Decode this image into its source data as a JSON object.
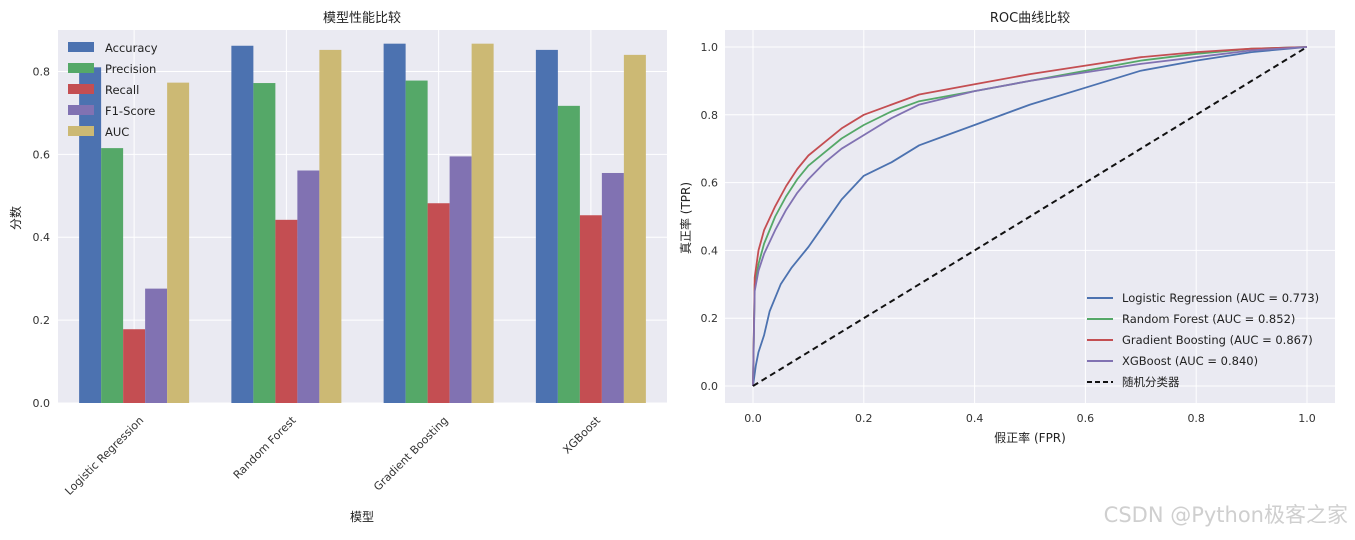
{
  "watermark": "CSDN @Python极客之家",
  "chart_data": [
    {
      "type": "bar",
      "title": "模型性能比较",
      "xlabel": "模型",
      "ylabel": "分数",
      "ylim": [
        0,
        0.9
      ],
      "yticks": [
        "0.0",
        "0.2",
        "0.4",
        "0.6",
        "0.8"
      ],
      "categories": [
        "Logistic Regression",
        "Random Forest",
        "Gradient Boosting",
        "XGBoost"
      ],
      "legend_position": "top-left",
      "series": [
        {
          "name": "Accuracy",
          "color": "#4c72b0",
          "values": [
            0.81,
            0.862,
            0.867,
            0.852
          ]
        },
        {
          "name": "Precision",
          "color": "#55a868",
          "values": [
            0.615,
            0.772,
            0.778,
            0.717
          ]
        },
        {
          "name": "Recall",
          "color": "#c44e52",
          "values": [
            0.178,
            0.442,
            0.482,
            0.453
          ]
        },
        {
          "name": "F1-Score",
          "color": "#8172b2",
          "values": [
            0.276,
            0.561,
            0.595,
            0.555
          ]
        },
        {
          "name": "AUC",
          "color": "#ccb974",
          "values": [
            0.773,
            0.852,
            0.867,
            0.84
          ]
        }
      ]
    },
    {
      "type": "line",
      "title": "ROC曲线比较",
      "xlabel": "假正率 (FPR)",
      "ylabel": "真正率 (TPR)",
      "xlim": [
        0,
        1
      ],
      "ylim": [
        0,
        1
      ],
      "xticks": [
        "0.0",
        "0.2",
        "0.4",
        "0.6",
        "0.8",
        "1.0"
      ],
      "yticks": [
        "0.0",
        "0.2",
        "0.4",
        "0.6",
        "0.8",
        "1.0"
      ],
      "legend_position": "lower-right",
      "series": [
        {
          "name": "Logistic Regression (AUC = 0.773)",
          "color": "#4c72b0",
          "dashed": false,
          "x": [
            0,
            0.005,
            0.01,
            0.02,
            0.03,
            0.05,
            0.07,
            0.1,
            0.13,
            0.16,
            0.2,
            0.25,
            0.3,
            0.35,
            0.4,
            0.5,
            0.6,
            0.7,
            0.8,
            0.9,
            1.0
          ],
          "y": [
            0,
            0.06,
            0.1,
            0.15,
            0.22,
            0.3,
            0.35,
            0.41,
            0.48,
            0.55,
            0.62,
            0.66,
            0.71,
            0.74,
            0.77,
            0.83,
            0.88,
            0.93,
            0.96,
            0.985,
            1.0
          ]
        },
        {
          "name": "Random Forest (AUC = 0.852)",
          "color": "#55a868",
          "dashed": false,
          "x": [
            0,
            0.003,
            0.01,
            0.02,
            0.04,
            0.06,
            0.08,
            0.1,
            0.13,
            0.16,
            0.2,
            0.25,
            0.3,
            0.4,
            0.5,
            0.6,
            0.7,
            0.8,
            0.9,
            1.0
          ],
          "y": [
            0,
            0.3,
            0.36,
            0.42,
            0.5,
            0.56,
            0.61,
            0.65,
            0.69,
            0.73,
            0.77,
            0.81,
            0.84,
            0.87,
            0.9,
            0.93,
            0.96,
            0.98,
            0.995,
            1.0
          ]
        },
        {
          "name": "Gradient Boosting (AUC = 0.867)",
          "color": "#c44e52",
          "dashed": false,
          "x": [
            0,
            0.003,
            0.01,
            0.02,
            0.04,
            0.06,
            0.08,
            0.1,
            0.13,
            0.16,
            0.2,
            0.25,
            0.3,
            0.4,
            0.5,
            0.6,
            0.7,
            0.8,
            0.9,
            1.0
          ],
          "y": [
            0,
            0.32,
            0.4,
            0.46,
            0.53,
            0.59,
            0.64,
            0.68,
            0.72,
            0.76,
            0.8,
            0.83,
            0.86,
            0.89,
            0.92,
            0.945,
            0.97,
            0.985,
            0.995,
            1.0
          ]
        },
        {
          "name": "XGBoost (AUC = 0.840)",
          "color": "#8172b2",
          "dashed": false,
          "x": [
            0,
            0.003,
            0.01,
            0.02,
            0.04,
            0.06,
            0.08,
            0.1,
            0.13,
            0.16,
            0.2,
            0.25,
            0.3,
            0.4,
            0.5,
            0.6,
            0.7,
            0.8,
            0.9,
            1.0
          ],
          "y": [
            0,
            0.28,
            0.34,
            0.39,
            0.46,
            0.52,
            0.57,
            0.61,
            0.66,
            0.7,
            0.74,
            0.79,
            0.83,
            0.87,
            0.9,
            0.925,
            0.95,
            0.97,
            0.99,
            1.0
          ]
        },
        {
          "name": "随机分类器",
          "color": "#111111",
          "dashed": true,
          "x": [
            0,
            1
          ],
          "y": [
            0,
            1
          ]
        }
      ]
    }
  ]
}
